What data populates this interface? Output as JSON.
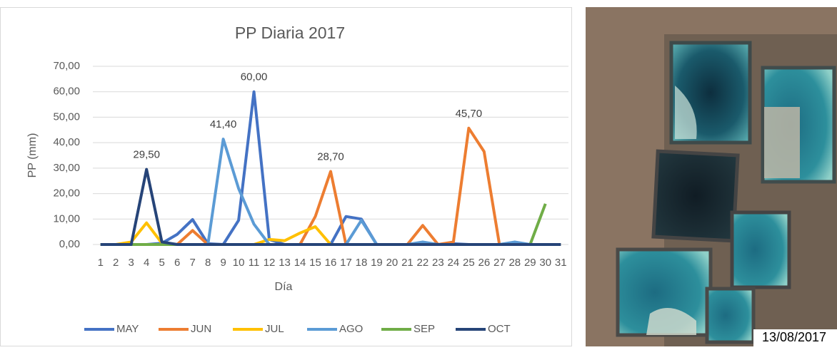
{
  "chart_data": {
    "type": "line",
    "title": "PP Diaria 2017",
    "x_label": "Día",
    "y_label": "PP (mm)",
    "categories": [
      "1",
      "2",
      "3",
      "4",
      "5",
      "6",
      "7",
      "8",
      "9",
      "10",
      "11",
      "12",
      "13",
      "14",
      "15",
      "16",
      "17",
      "18",
      "19",
      "20",
      "21",
      "22",
      "23",
      "24",
      "25",
      "26",
      "27",
      "28",
      "29",
      "30",
      "31"
    ],
    "ylim": [
      0,
      70
    ],
    "yticks": [
      {
        "value": 0,
        "label": "0,00"
      },
      {
        "value": 10,
        "label": "10,00"
      },
      {
        "value": 20,
        "label": "20,00"
      },
      {
        "value": 30,
        "label": "30,00"
      },
      {
        "value": 40,
        "label": "40,00"
      },
      {
        "value": 50,
        "label": "50,00"
      },
      {
        "value": 60,
        "label": "60,00"
      },
      {
        "value": 70,
        "label": "70,00"
      }
    ],
    "grid": true,
    "legend": "bottom",
    "series": [
      {
        "name": "MAY",
        "color": "#4472c4",
        "values": [
          0,
          0,
          0,
          0,
          0.5,
          4,
          9.8,
          0.3,
          0,
          9.5,
          60,
          2,
          0,
          0,
          0,
          0,
          11,
          10,
          0,
          0,
          0,
          0,
          0,
          0.3,
          0,
          0,
          0,
          0,
          0,
          0,
          0
        ],
        "value_labels": [
          null,
          null,
          null,
          null,
          null,
          null,
          null,
          null,
          null,
          null,
          "60,00",
          null,
          null,
          null,
          null,
          null,
          null,
          null,
          null,
          null,
          null,
          null,
          null,
          null,
          null,
          null,
          null,
          null,
          null,
          null,
          null
        ]
      },
      {
        "name": "JUN",
        "color": "#ed7d31",
        "values": [
          0,
          0,
          0,
          0,
          0,
          0,
          5.5,
          0,
          0,
          0,
          0,
          0,
          0,
          0,
          11,
          28.7,
          0,
          0,
          0,
          0,
          0,
          7.5,
          0,
          1,
          45.7,
          36.5,
          0,
          0,
          0,
          0,
          0
        ],
        "value_labels": [
          null,
          null,
          null,
          null,
          null,
          null,
          null,
          null,
          null,
          null,
          null,
          null,
          null,
          null,
          null,
          "28,70",
          null,
          null,
          null,
          null,
          null,
          null,
          null,
          null,
          "45,70",
          null,
          null,
          null,
          null,
          null,
          null
        ]
      },
      {
        "name": "JUL",
        "color": "#ffc000",
        "values": [
          0,
          0,
          1,
          8.5,
          0.5,
          0,
          0,
          0,
          0,
          0,
          0,
          2,
          1.5,
          4.5,
          7,
          0,
          0,
          0,
          0,
          0,
          0,
          0,
          0,
          0,
          0,
          0,
          0,
          0,
          0,
          0,
          0
        ]
      },
      {
        "name": "AGO",
        "color": "#5b9bd5",
        "values": [
          0,
          0,
          0,
          0,
          0,
          0,
          0,
          0,
          41.4,
          22,
          8,
          0,
          0,
          0,
          0,
          0,
          0,
          9.5,
          0,
          0,
          0,
          1,
          0,
          0,
          0,
          0,
          0,
          1,
          0,
          0,
          0
        ],
        "value_labels": [
          null,
          null,
          null,
          null,
          null,
          null,
          null,
          null,
          "41,40",
          null,
          null,
          null,
          null,
          null,
          null,
          null,
          null,
          null,
          null,
          null,
          null,
          null,
          null,
          null,
          null,
          null,
          null,
          null,
          null,
          null,
          null
        ]
      },
      {
        "name": "SEP",
        "color": "#70ad47",
        "values": [
          0,
          0,
          0,
          0,
          0,
          0,
          0,
          0,
          0,
          0,
          0,
          0,
          0,
          0,
          0,
          0,
          0,
          0,
          0,
          0,
          0,
          0,
          0,
          0,
          0,
          0,
          0,
          0,
          0,
          16,
          null
        ]
      },
      {
        "name": "OCT",
        "color": "#264478",
        "values": [
          0,
          0,
          0,
          29.5,
          1,
          0,
          0,
          0,
          0,
          0,
          0,
          0,
          0,
          0,
          0,
          0,
          0,
          0,
          0,
          0,
          0,
          0,
          0,
          0,
          0,
          0,
          0,
          0,
          0,
          0,
          0
        ],
        "value_labels": [
          null,
          null,
          null,
          "29,50",
          null,
          null,
          null,
          null,
          null,
          null,
          null,
          null,
          null,
          null,
          null,
          null,
          null,
          null,
          null,
          null,
          null,
          null,
          null,
          null,
          null,
          null,
          null,
          null,
          null,
          null,
          null
        ]
      }
    ]
  },
  "photo": {
    "date": "13/08/2017"
  }
}
